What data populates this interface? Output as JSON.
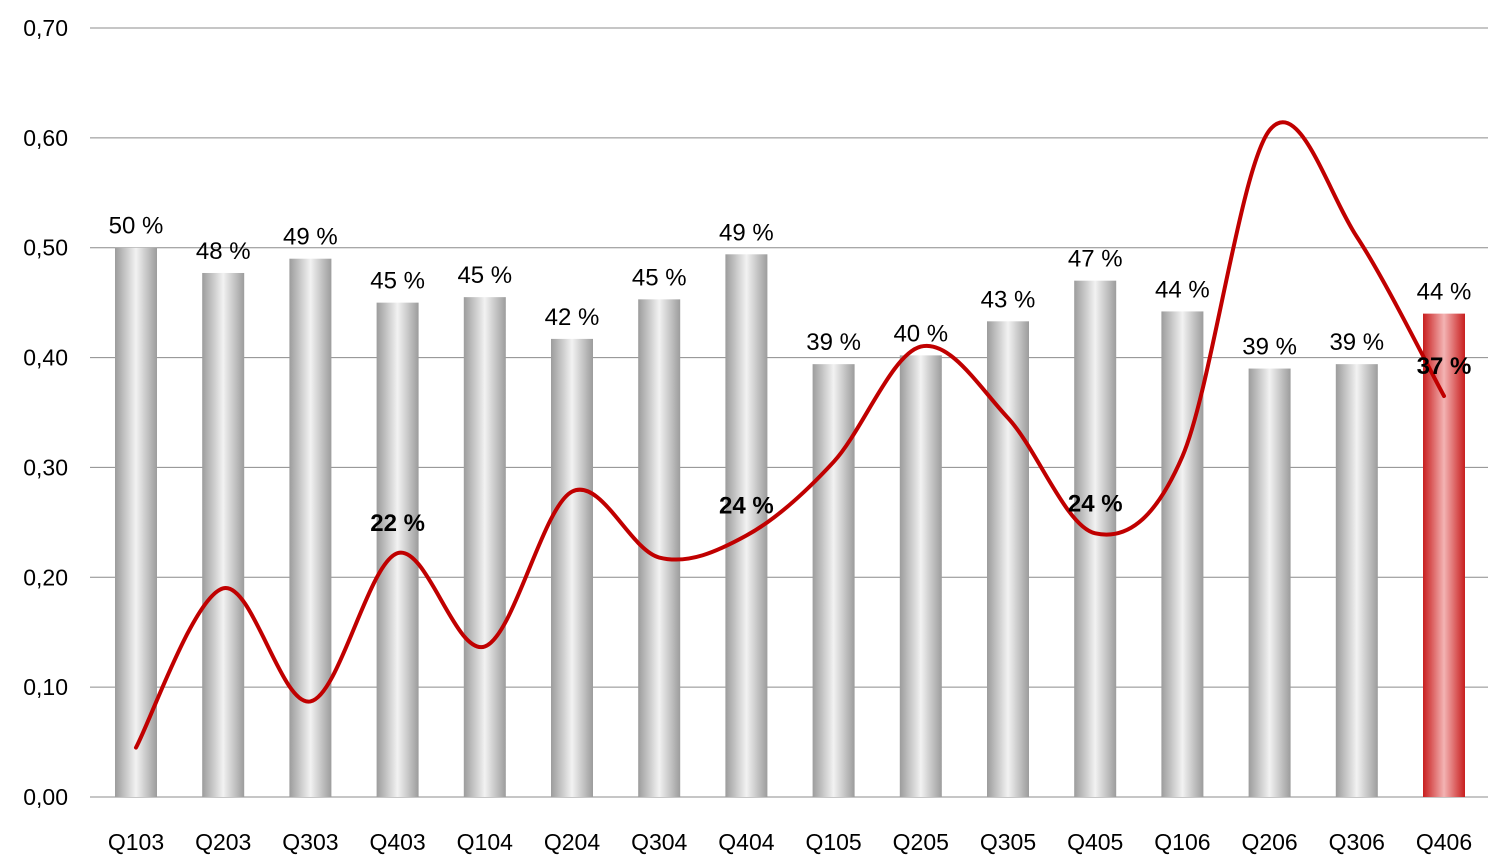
{
  "chart_data": {
    "type": "bar",
    "categories": [
      "Q103",
      "Q203",
      "Q303",
      "Q403",
      "Q104",
      "Q204",
      "Q304",
      "Q404",
      "Q105",
      "Q205",
      "Q305",
      "Q405",
      "Q106",
      "Q206",
      "Q306",
      "Q406"
    ],
    "ylim": [
      0,
      0.7
    ],
    "yticks": [
      "0,00",
      "0,10",
      "0,20",
      "0,30",
      "0,40",
      "0,50",
      "0,60",
      "0,70"
    ],
    "grid": true,
    "series": [
      {
        "type": "bar",
        "values": [
          0.5,
          0.477,
          0.49,
          0.45,
          0.455,
          0.417,
          0.453,
          0.494,
          0.394,
          0.402,
          0.433,
          0.47,
          0.442,
          0.39,
          0.394,
          0.44
        ],
        "labels": [
          "50 %",
          "48 %",
          "49 %",
          "45 %",
          "45 %",
          "42 %",
          "45 %",
          "49 %",
          "39 %",
          "40 %",
          "43 %",
          "47 %",
          "44 %",
          "39 %",
          "39 %",
          "44 %"
        ],
        "color": "#c0c0c0",
        "highlight_index": 15,
        "highlight_color": "#d83a3a"
      },
      {
        "type": "line",
        "smooth": true,
        "color": "#c00000",
        "values": [
          0.045,
          0.19,
          0.087,
          0.222,
          0.137,
          0.278,
          0.218,
          0.238,
          0.305,
          0.41,
          0.345,
          0.24,
          0.31,
          0.607,
          0.51,
          0.365
        ],
        "point_labels": [
          {
            "index": 3,
            "text": "22 %"
          },
          {
            "index": 7,
            "text": "24 %"
          },
          {
            "index": 11,
            "text": "24 %"
          },
          {
            "index": 15,
            "text": "37 %"
          }
        ]
      }
    ]
  }
}
